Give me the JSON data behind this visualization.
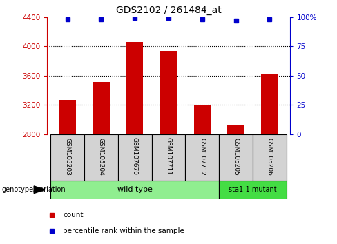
{
  "title": "GDS2102 / 261484_at",
  "samples": [
    "GSM105203",
    "GSM105204",
    "GSM107670",
    "GSM107711",
    "GSM107712",
    "GSM105205",
    "GSM105206"
  ],
  "counts": [
    3270,
    3510,
    4060,
    3940,
    3190,
    2920,
    3630
  ],
  "percentiles": [
    98,
    98,
    99,
    99,
    98,
    97,
    98
  ],
  "ylim_left": [
    2800,
    4400
  ],
  "ylim_right": [
    0,
    100
  ],
  "yticks_left": [
    2800,
    3200,
    3600,
    4000,
    4400
  ],
  "yticks_right": [
    0,
    25,
    50,
    75,
    100
  ],
  "ytick_labels_right": [
    "0",
    "25",
    "50",
    "75",
    "100%"
  ],
  "bar_color": "#cc0000",
  "dot_color": "#0000cc",
  "bar_bottom": 2800,
  "wt_color": "#90ee90",
  "mut_color": "#44dd44",
  "label_bg": "#d3d3d3",
  "left_axis_color": "#cc0000",
  "right_axis_color": "#0000cc"
}
